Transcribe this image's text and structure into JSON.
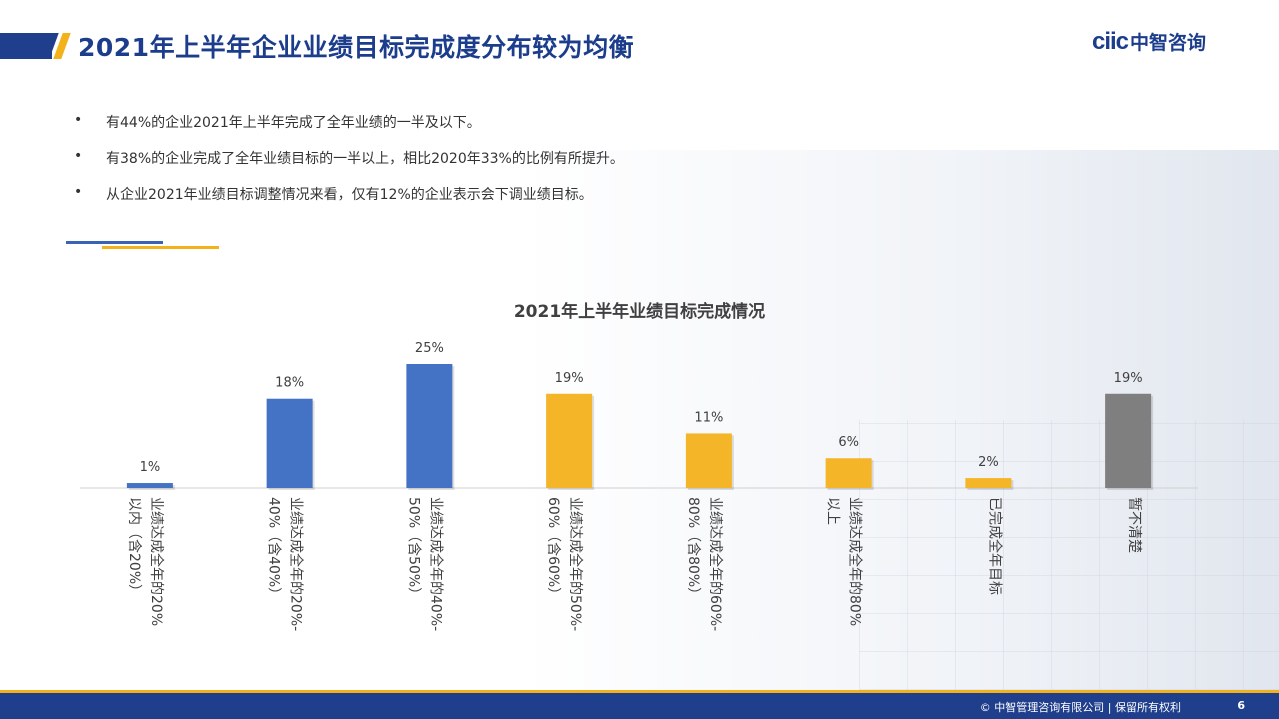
{
  "header": {
    "title": "2021年上半年企业业绩目标完成度分布较为均衡",
    "logo_mark": "ciic",
    "logo_text": "中智咨询"
  },
  "bullets": [
    "有44%的企业2021年上半年完成了全年业绩的一半及以下。",
    "有38%的企业完成了全年业绩目标的一半以上，相比2020年33%的比例有所提升。",
    "从企业2021年业绩目标调整情况来看，仅有12%的企业表示会下调业绩目标。"
  ],
  "chart_data": {
    "type": "bar",
    "title": "2021年上半年业绩目标完成情况",
    "xlabel": "",
    "ylabel": "",
    "ylim": [
      0,
      25
    ],
    "grid": false,
    "categories": [
      [
        "业绩达成全年的20%",
        "以内（含20%）"
      ],
      [
        "业绩达成全年的20%-",
        "40%（含40%）"
      ],
      [
        "业绩达成全年的40%-",
        "50%（含50%）"
      ],
      [
        "业绩达成全年的50%-",
        "60%（含60%）"
      ],
      [
        "业绩达成全年的60%-",
        "80%（含80%）"
      ],
      [
        "业绩达成全年的80%",
        "以上"
      ],
      [
        "已完成全年目标"
      ],
      [
        "暂不清楚"
      ]
    ],
    "values": [
      1,
      18,
      25,
      19,
      11,
      6,
      2,
      19
    ],
    "value_labels": [
      "1%",
      "18%",
      "25%",
      "19%",
      "11%",
      "6%",
      "2%",
      "19%"
    ],
    "bar_colors": [
      "#4472c4",
      "#4472c4",
      "#4472c4",
      "#f4b528",
      "#f4b528",
      "#f4b528",
      "#f4b528",
      "#7f7f7f"
    ]
  },
  "footer": {
    "copyright": "© 中智管理咨询有限公司 | 保留所有权利",
    "page_number": "6"
  },
  "colors": {
    "brand_blue": "#1f3e8c",
    "accent_yellow": "#f3b21a"
  }
}
